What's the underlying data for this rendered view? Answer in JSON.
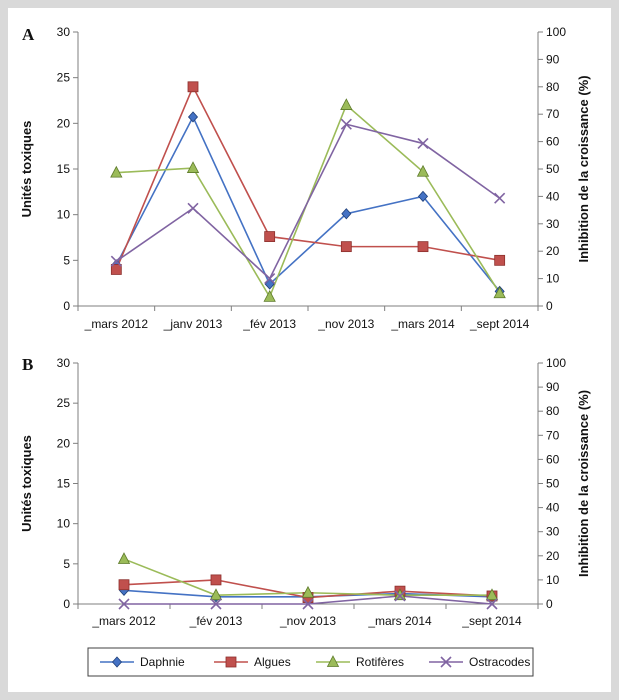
{
  "y_left_label": "Unités toxiques",
  "y_right_label": "Inhibition de la croissance (%)",
  "colors": {
    "Daphnie": "#4472c4",
    "Algues": "#c0504d",
    "Rotifères": "#9bbb59",
    "Ostracodes": "#8064a2"
  },
  "legend": [
    {
      "name": "Daphnie",
      "marker": "diamond"
    },
    {
      "name": "Algues",
      "marker": "square"
    },
    {
      "name": "Rotifères",
      "marker": "triangle"
    },
    {
      "name": "Ostracodes",
      "marker": "x"
    }
  ],
  "chart_data": [
    {
      "panel": "A",
      "type": "line",
      "categories": [
        "_mars 2012",
        "_janv 2013",
        "_fév 2013",
        "_nov 2013",
        "_mars 2014",
        "_sept 2014"
      ],
      "ylabel": "Unités toxiques",
      "y2label": "Inhibition de la croissance (%)",
      "ylim": [
        0,
        30
      ],
      "yticks": [
        0,
        5,
        10,
        15,
        20,
        25,
        30
      ],
      "y2lim": [
        0,
        100
      ],
      "y2ticks": [
        0,
        10,
        20,
        30,
        40,
        50,
        60,
        70,
        80,
        90,
        100
      ],
      "series": [
        {
          "name": "Daphnie",
          "marker": "diamond",
          "values": [
            4.5,
            20.7,
            2.4,
            10.1,
            12.0,
            1.6
          ]
        },
        {
          "name": "Algues",
          "marker": "square",
          "values": [
            4.0,
            24.0,
            7.6,
            6.5,
            6.5,
            5.0
          ]
        },
        {
          "name": "Rotifères",
          "marker": "triangle",
          "values": [
            14.6,
            15.1,
            1.0,
            22.0,
            14.7,
            1.4
          ]
        },
        {
          "name": "Ostracodes",
          "marker": "x",
          "values": [
            4.9,
            10.7,
            3.0,
            19.9,
            17.8,
            11.8
          ]
        }
      ],
      "legend": "bottom",
      "grid": false
    },
    {
      "panel": "B",
      "type": "line",
      "categories": [
        "_mars 2012",
        "_fév 2013",
        "_nov 2013",
        "_mars 2014",
        "_sept 2014"
      ],
      "ylabel": "Unités toxiques",
      "y2label": "Inhibition de la croissance (%)",
      "ylim": [
        0,
        30
      ],
      "yticks": [
        0,
        5,
        10,
        15,
        20,
        25,
        30
      ],
      "y2lim": [
        0,
        100
      ],
      "y2ticks": [
        0,
        10,
        20,
        30,
        40,
        50,
        60,
        70,
        80,
        90,
        100
      ],
      "series": [
        {
          "name": "Daphnie",
          "marker": "diamond",
          "values": [
            1.7,
            0.9,
            0.9,
            1.3,
            0.9
          ]
        },
        {
          "name": "Algues",
          "marker": "square",
          "values": [
            2.4,
            3.0,
            0.8,
            1.6,
            1.0
          ]
        },
        {
          "name": "Rotifères",
          "marker": "triangle",
          "values": [
            5.6,
            1.1,
            1.4,
            1.1,
            1.1
          ]
        },
        {
          "name": "Ostracodes",
          "marker": "x",
          "values": [
            0.0,
            0.0,
            0.0,
            1.0,
            0.0
          ]
        }
      ],
      "legend": "bottom",
      "grid": false
    }
  ]
}
